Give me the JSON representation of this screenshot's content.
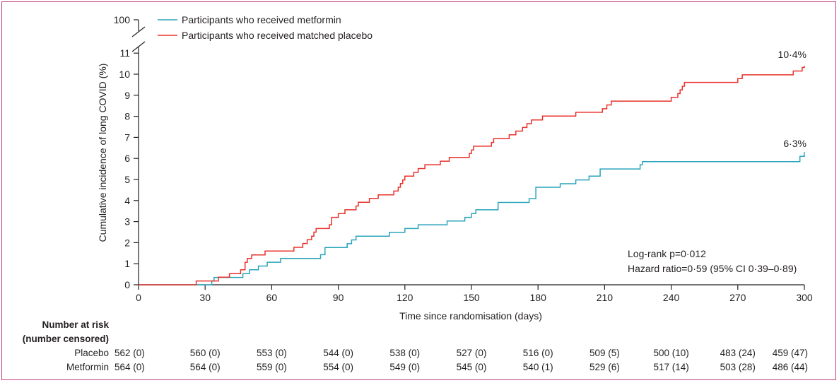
{
  "colors": {
    "metformin": "#2aa4bb",
    "placebo": "#e8332c",
    "frame": "#c2397a",
    "axis": "#231f20"
  },
  "chart_data": {
    "type": "line",
    "step": true,
    "xlabel": "Time since randomisation (days)",
    "ylabel": "Cumulative incidence of long COVID (%)",
    "xticks": [
      0,
      30,
      60,
      90,
      120,
      150,
      180,
      210,
      240,
      270,
      300
    ],
    "yticks": [
      0,
      1,
      2,
      3,
      4,
      5,
      6,
      7,
      8,
      9,
      10,
      11
    ],
    "ytick_break": "100",
    "xlim": [
      0,
      300
    ],
    "ylim": [
      0,
      11.5
    ],
    "legend_position": "top-left",
    "series": [
      {
        "name": "Participants who received metformin",
        "end_label": "6·3%",
        "x": [
          0,
          32,
          33,
          34,
          47,
          50,
          54,
          58,
          64,
          82,
          84,
          94,
          96,
          98,
          100,
          113,
          120,
          126,
          139,
          147,
          150,
          152,
          162,
          176,
          179,
          180,
          190,
          197,
          203,
          208,
          210,
          226,
          227,
          298,
          300
        ],
        "y": [
          0,
          0,
          0.18,
          0.35,
          0.53,
          0.71,
          0.89,
          1.07,
          1.25,
          1.43,
          1.77,
          1.95,
          2.13,
          2.31,
          2.31,
          2.49,
          2.67,
          2.85,
          3.03,
          3.2,
          3.38,
          3.56,
          3.91,
          4.09,
          4.63,
          4.63,
          4.8,
          4.98,
          5.16,
          5.5,
          5.5,
          5.7,
          5.85,
          6.1,
          6.3
        ]
      },
      {
        "name": "Participants who received matched placebo",
        "end_label": "10·4%",
        "x": [
          0,
          24,
          26,
          36,
          41,
          46,
          48,
          49,
          51,
          57,
          70,
          74,
          76,
          78,
          79,
          80,
          82,
          86,
          87,
          88,
          90,
          93,
          98,
          99,
          104,
          108,
          115,
          117,
          118,
          119,
          120,
          124,
          126,
          129,
          136,
          140,
          149,
          150,
          151,
          159,
          160,
          162,
          167,
          170,
          173,
          175,
          177,
          182,
          197,
          209,
          211,
          213,
          240,
          243,
          244,
          245,
          246,
          248,
          270,
          272,
          295,
          299,
          300
        ],
        "y": [
          0,
          0,
          0.18,
          0.36,
          0.53,
          0.71,
          1.07,
          1.25,
          1.42,
          1.6,
          1.78,
          1.96,
          2.14,
          2.31,
          2.5,
          2.67,
          2.67,
          2.85,
          3.2,
          3.2,
          3.38,
          3.56,
          3.74,
          3.92,
          4.1,
          4.27,
          4.45,
          4.63,
          4.81,
          4.98,
          5.16,
          5.34,
          5.52,
          5.7,
          5.87,
          6.05,
          6.23,
          6.4,
          6.58,
          6.76,
          6.94,
          6.94,
          7.12,
          7.3,
          7.47,
          7.65,
          7.83,
          8.01,
          8.19,
          8.36,
          8.54,
          8.72,
          8.9,
          9.08,
          9.25,
          9.43,
          9.61,
          9.61,
          9.79,
          9.97,
          10.15,
          10.32,
          10.4
        ]
      }
    ],
    "annotations": {
      "logrank": "Log-rank p=0·012",
      "hazard": "Hazard ratio=0·59 (95% CI 0·39–0·89)"
    },
    "risk_table": {
      "title_line1": "Number at risk",
      "title_line2": "(number censored)",
      "rows": [
        {
          "label": "Placebo",
          "values": [
            "562 (0)",
            "560 (0)",
            "553 (0)",
            "544 (0)",
            "538 (0)",
            "527 (0)",
            "516 (0)",
            "509 (5)",
            "500 (10)",
            "483 (24)",
            "459 (47)"
          ]
        },
        {
          "label": "Metformin",
          "values": [
            "564 (0)",
            "564 (0)",
            "559 (0)",
            "554 (0)",
            "549 (0)",
            "545 (0)",
            "540 (1)",
            "529 (6)",
            "517 (14)",
            "503 (28)",
            "486 (44)"
          ]
        }
      ]
    }
  }
}
